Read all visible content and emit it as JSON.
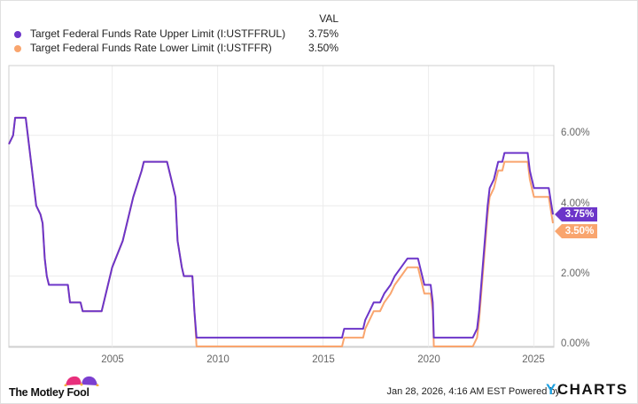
{
  "legend": {
    "header": "VAL",
    "items": [
      {
        "name": "Target Federal Funds Rate Upper Limit (I:USTFFRUL)",
        "value": "3.75%",
        "color": "#6c35c9"
      },
      {
        "name": "Target Federal Funds Rate Lower Limit (I:USTFFR)",
        "value": "3.50%",
        "color": "#f9a56e"
      }
    ]
  },
  "axis": {
    "y_ticks": [
      "6.00%",
      "4.00%",
      "2.00%",
      "0.00%"
    ],
    "x_ticks": [
      "2005",
      "2010",
      "2015",
      "2020",
      "2025"
    ]
  },
  "tags": {
    "upper": "3.75%",
    "lower": "3.50%"
  },
  "footer": {
    "brand_left": "The Motley Fool",
    "timestamp": "Jan 28, 2026, 4:16 AM EST Powered by",
    "brand_right_y": "Y",
    "brand_right_rest": "CHARTS"
  },
  "chart_data": {
    "type": "line",
    "title": "",
    "xlabel": "",
    "ylabel": "",
    "ylim": [
      0,
      7
    ],
    "xlim": [
      2000.1,
      2025.9
    ],
    "grid": true,
    "legend_position": "top-left",
    "series": [
      {
        "name": "Target Federal Funds Rate Upper Limit (I:USTFFRUL)",
        "color": "#6c35c9",
        "points": [
          [
            2000.1,
            5.75
          ],
          [
            2000.3,
            6.0
          ],
          [
            2000.4,
            6.5
          ],
          [
            2000.9,
            6.5
          ],
          [
            2001.0,
            6.0
          ],
          [
            2001.2,
            5.0
          ],
          [
            2001.4,
            4.0
          ],
          [
            2001.6,
            3.75
          ],
          [
            2001.7,
            3.5
          ],
          [
            2001.8,
            2.5
          ],
          [
            2001.9,
            2.0
          ],
          [
            2002.0,
            1.75
          ],
          [
            2002.9,
            1.75
          ],
          [
            2003.0,
            1.25
          ],
          [
            2003.5,
            1.25
          ],
          [
            2003.6,
            1.0
          ],
          [
            2004.5,
            1.0
          ],
          [
            2004.7,
            1.5
          ],
          [
            2005.0,
            2.25
          ],
          [
            2005.5,
            3.0
          ],
          [
            2006.0,
            4.25
          ],
          [
            2006.4,
            5.0
          ],
          [
            2006.5,
            5.25
          ],
          [
            2007.6,
            5.25
          ],
          [
            2007.8,
            4.75
          ],
          [
            2008.0,
            4.25
          ],
          [
            2008.1,
            3.0
          ],
          [
            2008.3,
            2.25
          ],
          [
            2008.4,
            2.0
          ],
          [
            2008.8,
            2.0
          ],
          [
            2008.9,
            1.0
          ],
          [
            2009.0,
            0.25
          ],
          [
            2015.9,
            0.25
          ],
          [
            2016.0,
            0.5
          ],
          [
            2016.9,
            0.5
          ],
          [
            2017.0,
            0.75
          ],
          [
            2017.2,
            1.0
          ],
          [
            2017.4,
            1.25
          ],
          [
            2017.7,
            1.25
          ],
          [
            2017.9,
            1.5
          ],
          [
            2018.2,
            1.75
          ],
          [
            2018.4,
            2.0
          ],
          [
            2018.7,
            2.25
          ],
          [
            2019.0,
            2.5
          ],
          [
            2019.5,
            2.5
          ],
          [
            2019.6,
            2.25
          ],
          [
            2019.8,
            1.75
          ],
          [
            2020.1,
            1.75
          ],
          [
            2020.2,
            1.25
          ],
          [
            2020.25,
            0.25
          ],
          [
            2022.1,
            0.25
          ],
          [
            2022.3,
            0.5
          ],
          [
            2022.4,
            1.0
          ],
          [
            2022.5,
            1.75
          ],
          [
            2022.6,
            2.5
          ],
          [
            2022.7,
            3.25
          ],
          [
            2022.8,
            4.0
          ],
          [
            2022.9,
            4.5
          ],
          [
            2023.1,
            4.75
          ],
          [
            2023.3,
            5.25
          ],
          [
            2023.5,
            5.25
          ],
          [
            2023.6,
            5.5
          ],
          [
            2024.7,
            5.5
          ],
          [
            2024.8,
            5.0
          ],
          [
            2024.9,
            4.75
          ],
          [
            2025.0,
            4.5
          ],
          [
            2025.7,
            4.5
          ],
          [
            2025.9,
            3.75
          ]
        ]
      },
      {
        "name": "Target Federal Funds Rate Lower Limit (I:USTFFR)",
        "color": "#f9a56e",
        "points": [
          [
            2000.1,
            5.75
          ],
          [
            2000.3,
            6.0
          ],
          [
            2000.4,
            6.5
          ],
          [
            2000.9,
            6.5
          ],
          [
            2001.0,
            6.0
          ],
          [
            2001.2,
            5.0
          ],
          [
            2001.4,
            4.0
          ],
          [
            2001.6,
            3.75
          ],
          [
            2001.7,
            3.5
          ],
          [
            2001.8,
            2.5
          ],
          [
            2001.9,
            2.0
          ],
          [
            2002.0,
            1.75
          ],
          [
            2002.9,
            1.75
          ],
          [
            2003.0,
            1.25
          ],
          [
            2003.5,
            1.25
          ],
          [
            2003.6,
            1.0
          ],
          [
            2004.5,
            1.0
          ],
          [
            2004.7,
            1.5
          ],
          [
            2005.0,
            2.25
          ],
          [
            2005.5,
            3.0
          ],
          [
            2006.0,
            4.25
          ],
          [
            2006.4,
            5.0
          ],
          [
            2006.5,
            5.25
          ],
          [
            2007.6,
            5.25
          ],
          [
            2007.8,
            4.75
          ],
          [
            2008.0,
            4.25
          ],
          [
            2008.1,
            3.0
          ],
          [
            2008.3,
            2.25
          ],
          [
            2008.4,
            2.0
          ],
          [
            2008.8,
            2.0
          ],
          [
            2009.0,
            0.0
          ],
          [
            2015.9,
            0.0
          ],
          [
            2016.0,
            0.25
          ],
          [
            2016.9,
            0.25
          ],
          [
            2017.0,
            0.5
          ],
          [
            2017.2,
            0.75
          ],
          [
            2017.4,
            1.0
          ],
          [
            2017.7,
            1.0
          ],
          [
            2017.9,
            1.25
          ],
          [
            2018.2,
            1.5
          ],
          [
            2018.4,
            1.75
          ],
          [
            2018.7,
            2.0
          ],
          [
            2019.0,
            2.25
          ],
          [
            2019.5,
            2.25
          ],
          [
            2019.6,
            2.0
          ],
          [
            2019.8,
            1.5
          ],
          [
            2020.1,
            1.5
          ],
          [
            2020.2,
            1.0
          ],
          [
            2020.25,
            0.0
          ],
          [
            2022.1,
            0.0
          ],
          [
            2022.3,
            0.25
          ],
          [
            2022.4,
            0.75
          ],
          [
            2022.5,
            1.5
          ],
          [
            2022.6,
            2.25
          ],
          [
            2022.7,
            3.0
          ],
          [
            2022.8,
            3.75
          ],
          [
            2022.9,
            4.25
          ],
          [
            2023.1,
            4.5
          ],
          [
            2023.3,
            5.0
          ],
          [
            2023.5,
            5.0
          ],
          [
            2023.6,
            5.25
          ],
          [
            2024.7,
            5.25
          ],
          [
            2024.8,
            4.75
          ],
          [
            2024.9,
            4.5
          ],
          [
            2025.0,
            4.25
          ],
          [
            2025.7,
            4.25
          ],
          [
            2025.9,
            3.5
          ]
        ]
      }
    ]
  }
}
